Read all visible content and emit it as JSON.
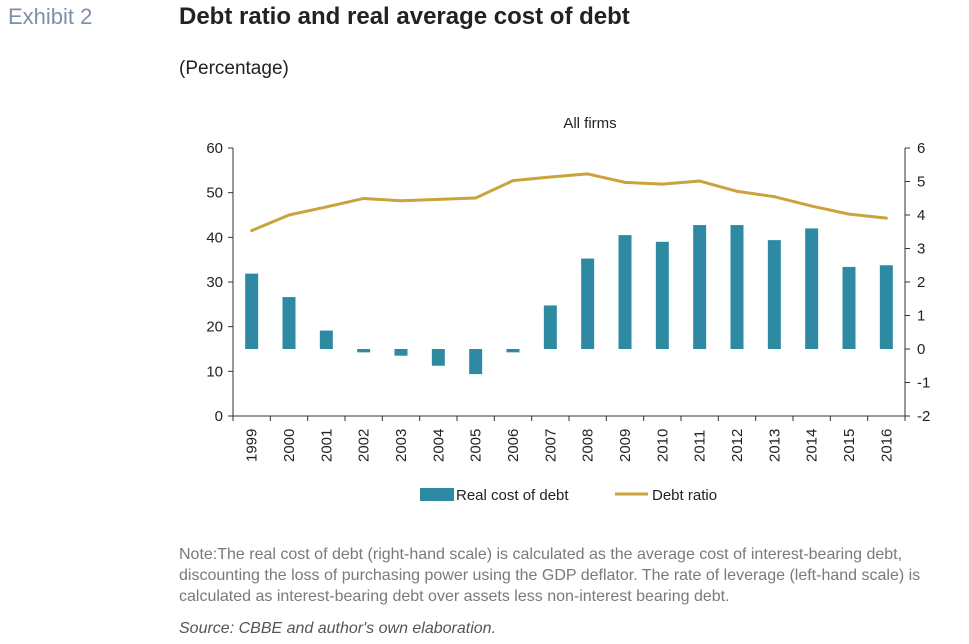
{
  "header": {
    "exhibit_label": "Exhibit 2",
    "title": "Debt ratio and real average cost of debt",
    "subtitle": "(Percentage)"
  },
  "chart_data": {
    "type": "bar+line",
    "title": "All firms",
    "categories": [
      "1999",
      "2000",
      "2001",
      "2002",
      "2003",
      "2004",
      "2005",
      "2006",
      "2007",
      "2008",
      "2009",
      "2010",
      "2011",
      "2012",
      "2013",
      "2014",
      "2015",
      "2016"
    ],
    "series": [
      {
        "name": "Real cost of debt",
        "type": "bar",
        "axis": "right",
        "color": "#2e8aa3",
        "values": [
          2.25,
          1.55,
          0.55,
          -0.1,
          -0.2,
          -0.5,
          -0.75,
          -0.1,
          1.3,
          2.7,
          3.4,
          3.2,
          3.7,
          3.7,
          3.25,
          3.6,
          2.45,
          2.5
        ]
      },
      {
        "name": "Debt ratio",
        "type": "line",
        "axis": "left",
        "color": "#c9a43d",
        "values": [
          41.5,
          45,
          46.8,
          48.7,
          48.2,
          48.5,
          48.8,
          52.7,
          53.5,
          54.2,
          52.3,
          51.9,
          52.6,
          50.3,
          49.1,
          47,
          45.2,
          44.3
        ]
      }
    ],
    "left_axis": {
      "ylim": [
        0,
        60
      ],
      "ticks": [
        "0",
        "10",
        "20",
        "30",
        "40",
        "50",
        "60"
      ]
    },
    "right_axis": {
      "ylim": [
        -2,
        6
      ],
      "ticks": [
        "-2",
        "-1",
        "0",
        "1",
        "2",
        "3",
        "4",
        "5",
        "6"
      ]
    },
    "legend_position": "bottom",
    "grid": false
  },
  "footer": {
    "note": "Note:The real cost of debt (right-hand scale) is calculated as the average cost of interest-bearing debt, discounting the loss of purchasing power using the GDP deflator. The rate of leverage (left-hand scale) is calculated as interest-bearing debt over assets less non-interest bearing debt.",
    "source": "Source: CBBE and author's own elaboration."
  }
}
